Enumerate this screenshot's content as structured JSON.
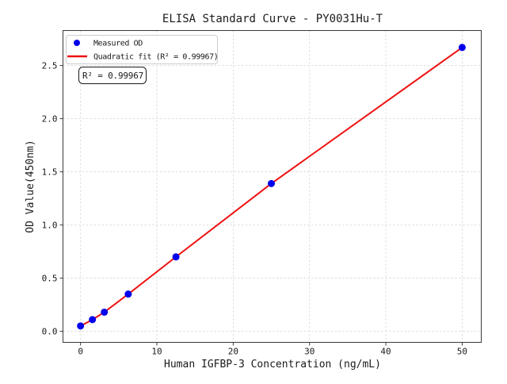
{
  "chart_data": {
    "type": "scatter",
    "title": "ELISA Standard Curve - PY0031Hu-T",
    "xlabel": "Human IGFBP-3 Concentration (ng/mL)",
    "ylabel": "OD Value(450nm)",
    "xlim": [
      -2.3,
      52.5
    ],
    "ylim": [
      -0.104,
      2.829
    ],
    "xticks": [
      "0",
      "10",
      "20",
      "30",
      "40",
      "50"
    ],
    "yticks": [
      "0.0",
      "0.5",
      "1.0",
      "1.5",
      "2.0",
      "2.5"
    ],
    "grid": "dashed",
    "legend_position": "upper-left",
    "points": [
      {
        "x": 0,
        "od": 0.05
      },
      {
        "x": 1.56,
        "od": 0.11
      },
      {
        "x": 3.12,
        "od": 0.18
      },
      {
        "x": 6.25,
        "od": 0.35
      },
      {
        "x": 12.5,
        "od": 0.7
      },
      {
        "x": 25,
        "od": 1.39
      },
      {
        "x": 50,
        "od": 2.67
      }
    ],
    "fit": {
      "type": "quadratic",
      "r_squared": "0.99967"
    },
    "legend": {
      "measured_label": "Measured OD",
      "fit_label": "Quadratic fit (R² = 0.99967)"
    },
    "annotation": "R² = 0.99967",
    "colors": {
      "marker": "#0000ee",
      "fit_line": "#ee1111",
      "grid": "#d9d9d9",
      "spine": "#3a3a3a",
      "text": "#1a1a1a"
    }
  }
}
